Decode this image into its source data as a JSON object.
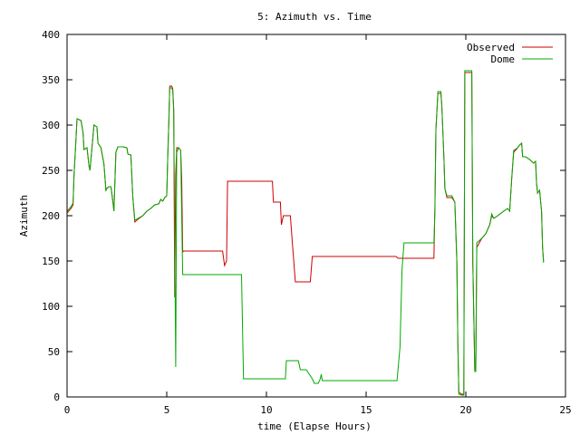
{
  "chart_data": {
    "type": "line",
    "title": "5: Azimuth vs. Time",
    "xlabel": "time (Elapse Hours)",
    "ylabel": "Azimuth",
    "xlim": [
      0,
      25
    ],
    "ylim": [
      0,
      400
    ],
    "xticks": [
      0,
      5,
      10,
      15,
      20,
      25
    ],
    "yticks": [
      0,
      50,
      100,
      150,
      200,
      250,
      300,
      350,
      400
    ],
    "grid": false,
    "legend_position": "top-right",
    "series": [
      {
        "name": "Observed",
        "color": "#cc0000",
        "points": [
          [
            0.0,
            203
          ],
          [
            0.2,
            208
          ],
          [
            0.3,
            212
          ],
          [
            0.35,
            245
          ],
          [
            0.45,
            285
          ],
          [
            0.5,
            307
          ],
          [
            0.7,
            305
          ],
          [
            0.8,
            292
          ],
          [
            0.85,
            273
          ],
          [
            1.0,
            275
          ],
          [
            1.1,
            255
          ],
          [
            1.15,
            250
          ],
          [
            1.25,
            275
          ],
          [
            1.35,
            300
          ],
          [
            1.5,
            298
          ],
          [
            1.55,
            280
          ],
          [
            1.7,
            275
          ],
          [
            1.85,
            257
          ],
          [
            1.95,
            228
          ],
          [
            2.0,
            230
          ],
          [
            2.1,
            232
          ],
          [
            2.2,
            232
          ],
          [
            2.3,
            215
          ],
          [
            2.35,
            205
          ],
          [
            2.45,
            270
          ],
          [
            2.55,
            276
          ],
          [
            2.8,
            276
          ],
          [
            3.0,
            275
          ],
          [
            3.05,
            268
          ],
          [
            3.2,
            267
          ],
          [
            3.3,
            220
          ],
          [
            3.4,
            193
          ],
          [
            3.55,
            196
          ],
          [
            3.8,
            200
          ],
          [
            4.0,
            205
          ],
          [
            4.2,
            208
          ],
          [
            4.4,
            212
          ],
          [
            4.6,
            213
          ],
          [
            4.7,
            218
          ],
          [
            4.8,
            216
          ],
          [
            4.9,
            220
          ],
          [
            5.0,
            222
          ],
          [
            5.05,
            265
          ],
          [
            5.1,
            300
          ],
          [
            5.15,
            343
          ],
          [
            5.25,
            343
          ],
          [
            5.3,
            340
          ],
          [
            5.35,
            318
          ],
          [
            5.4,
            110
          ],
          [
            5.45,
            245
          ],
          [
            5.5,
            275
          ],
          [
            5.6,
            275
          ],
          [
            5.7,
            272
          ],
          [
            5.75,
            240
          ],
          [
            5.8,
            160
          ],
          [
            5.85,
            161
          ],
          [
            7.8,
            161
          ],
          [
            7.9,
            145
          ],
          [
            8.0,
            150
          ],
          [
            8.05,
            238
          ],
          [
            10.3,
            238
          ],
          [
            10.35,
            215
          ],
          [
            10.7,
            215
          ],
          [
            10.75,
            190
          ],
          [
            10.85,
            200
          ],
          [
            11.2,
            200
          ],
          [
            11.3,
            170
          ],
          [
            11.45,
            127
          ],
          [
            12.2,
            127
          ],
          [
            12.3,
            155
          ],
          [
            16.5,
            155
          ],
          [
            16.6,
            153
          ],
          [
            18.4,
            153
          ],
          [
            18.45,
            210
          ],
          [
            18.5,
            295
          ],
          [
            18.6,
            335
          ],
          [
            18.75,
            335
          ],
          [
            18.8,
            320
          ],
          [
            18.9,
            265
          ],
          [
            18.95,
            230
          ],
          [
            19.05,
            220
          ],
          [
            19.2,
            220
          ],
          [
            19.3,
            220
          ],
          [
            19.45,
            215
          ],
          [
            19.55,
            150
          ],
          [
            19.6,
            60
          ],
          [
            19.65,
            5
          ],
          [
            19.8,
            3
          ],
          [
            19.9,
            3
          ],
          [
            19.95,
            358
          ],
          [
            20.3,
            358
          ],
          [
            20.35,
            150
          ],
          [
            20.45,
            30
          ],
          [
            20.5,
            30
          ],
          [
            20.55,
            165
          ],
          [
            20.8,
            175
          ],
          [
            21.0,
            180
          ],
          [
            21.2,
            190
          ],
          [
            21.3,
            200
          ],
          [
            21.4,
            197
          ],
          [
            21.6,
            200
          ],
          [
            21.9,
            205
          ],
          [
            22.1,
            208
          ],
          [
            22.2,
            205
          ],
          [
            22.3,
            240
          ],
          [
            22.4,
            270
          ],
          [
            22.6,
            275
          ],
          [
            22.7,
            278
          ],
          [
            22.8,
            280
          ],
          [
            22.85,
            265
          ],
          [
            23.0,
            265
          ],
          [
            23.2,
            262
          ],
          [
            23.4,
            258
          ],
          [
            23.5,
            260
          ],
          [
            23.55,
            235
          ],
          [
            23.6,
            225
          ],
          [
            23.7,
            228
          ],
          [
            23.8,
            205
          ],
          [
            23.85,
            165
          ],
          [
            23.9,
            150
          ]
        ]
      },
      {
        "name": "Dome",
        "color": "#00aa00",
        "points": [
          [
            0.0,
            205
          ],
          [
            0.2,
            210
          ],
          [
            0.3,
            214
          ],
          [
            0.35,
            245
          ],
          [
            0.45,
            285
          ],
          [
            0.5,
            307
          ],
          [
            0.7,
            305
          ],
          [
            0.8,
            292
          ],
          [
            0.85,
            273
          ],
          [
            1.0,
            275
          ],
          [
            1.1,
            255
          ],
          [
            1.15,
            250
          ],
          [
            1.25,
            275
          ],
          [
            1.35,
            300
          ],
          [
            1.5,
            298
          ],
          [
            1.55,
            280
          ],
          [
            1.7,
            275
          ],
          [
            1.85,
            257
          ],
          [
            1.95,
            228
          ],
          [
            2.0,
            230
          ],
          [
            2.1,
            232
          ],
          [
            2.2,
            232
          ],
          [
            2.3,
            215
          ],
          [
            2.35,
            205
          ],
          [
            2.45,
            270
          ],
          [
            2.55,
            276
          ],
          [
            2.8,
            276
          ],
          [
            3.0,
            275
          ],
          [
            3.05,
            268
          ],
          [
            3.2,
            267
          ],
          [
            3.3,
            220
          ],
          [
            3.4,
            195
          ],
          [
            3.55,
            197
          ],
          [
            3.8,
            200
          ],
          [
            4.0,
            205
          ],
          [
            4.2,
            208
          ],
          [
            4.4,
            212
          ],
          [
            4.6,
            213
          ],
          [
            4.7,
            218
          ],
          [
            4.8,
            216
          ],
          [
            4.9,
            220
          ],
          [
            5.0,
            222
          ],
          [
            5.05,
            265
          ],
          [
            5.1,
            300
          ],
          [
            5.15,
            341
          ],
          [
            5.25,
            341
          ],
          [
            5.3,
            338
          ],
          [
            5.35,
            315
          ],
          [
            5.45,
            33
          ],
          [
            5.5,
            270
          ],
          [
            5.6,
            275
          ],
          [
            5.7,
            272
          ],
          [
            5.75,
            200
          ],
          [
            5.8,
            135
          ],
          [
            8.75,
            135
          ],
          [
            8.85,
            20
          ],
          [
            10.95,
            20
          ],
          [
            11.0,
            40
          ],
          [
            11.6,
            40
          ],
          [
            11.7,
            30
          ],
          [
            12.0,
            30
          ],
          [
            12.3,
            20
          ],
          [
            12.4,
            15
          ],
          [
            12.6,
            15
          ],
          [
            12.7,
            20
          ],
          [
            12.75,
            25
          ],
          [
            12.8,
            18
          ],
          [
            16.55,
            18
          ],
          [
            16.7,
            55
          ],
          [
            16.8,
            140
          ],
          [
            16.9,
            170
          ],
          [
            18.4,
            170
          ],
          [
            18.45,
            205
          ],
          [
            18.5,
            295
          ],
          [
            18.6,
            337
          ],
          [
            18.75,
            337
          ],
          [
            18.8,
            320
          ],
          [
            18.9,
            265
          ],
          [
            18.95,
            230
          ],
          [
            19.05,
            222
          ],
          [
            19.2,
            222
          ],
          [
            19.3,
            222
          ],
          [
            19.45,
            215
          ],
          [
            19.55,
            150
          ],
          [
            19.6,
            60
          ],
          [
            19.65,
            3
          ],
          [
            19.8,
            2
          ],
          [
            19.9,
            2
          ],
          [
            19.95,
            360
          ],
          [
            20.3,
            360
          ],
          [
            20.35,
            150
          ],
          [
            20.45,
            28
          ],
          [
            20.5,
            28
          ],
          [
            20.55,
            170
          ],
          [
            20.8,
            175
          ],
          [
            21.0,
            180
          ],
          [
            21.2,
            190
          ],
          [
            21.3,
            202
          ],
          [
            21.4,
            197
          ],
          [
            21.6,
            200
          ],
          [
            21.9,
            205
          ],
          [
            22.1,
            208
          ],
          [
            22.2,
            205
          ],
          [
            22.3,
            240
          ],
          [
            22.4,
            272
          ],
          [
            22.6,
            275
          ],
          [
            22.7,
            278
          ],
          [
            22.8,
            280
          ],
          [
            22.85,
            265
          ],
          [
            23.0,
            265
          ],
          [
            23.2,
            262
          ],
          [
            23.4,
            258
          ],
          [
            23.5,
            260
          ],
          [
            23.55,
            235
          ],
          [
            23.6,
            225
          ],
          [
            23.7,
            228
          ],
          [
            23.8,
            205
          ],
          [
            23.85,
            165
          ],
          [
            23.9,
            148
          ]
        ]
      }
    ]
  }
}
